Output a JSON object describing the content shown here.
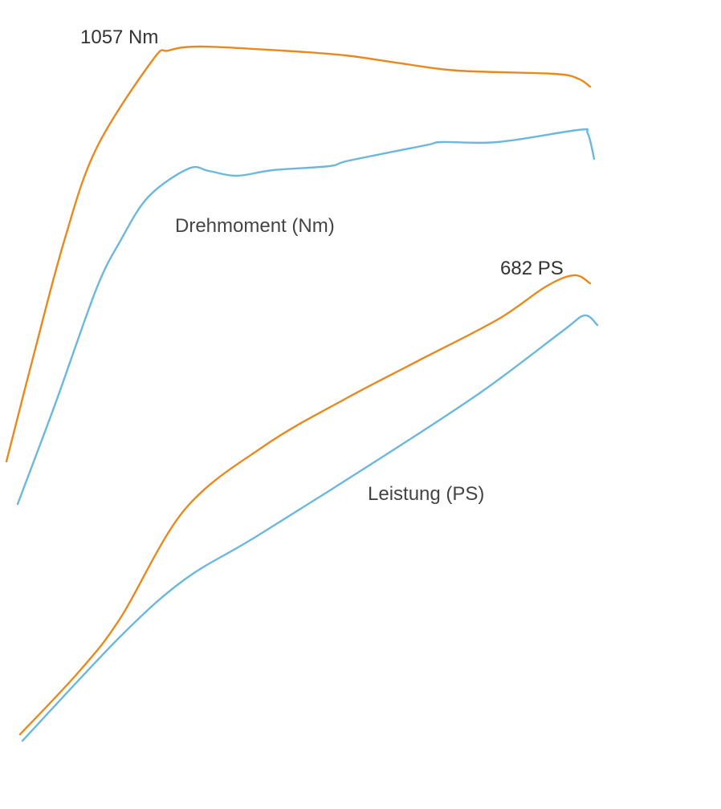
{
  "chart_data": {
    "type": "line",
    "colors": {
      "tuned": "#E8891E",
      "stock": "#6CB7DC"
    },
    "groups": [
      {
        "key": "torque",
        "label": "Drehmoment (Nm)",
        "peak_label": "1057 Nm",
        "series": [
          {
            "role": "tuned",
            "points": [
              [
                8,
                575
              ],
              [
                40,
                450
              ],
              [
                80,
                300
              ],
              [
                120,
                185
              ],
              [
                190,
                75
              ],
              [
                210,
                63
              ],
              [
                250,
                58
              ],
              [
                350,
                63
              ],
              [
                430,
                69
              ],
              [
                500,
                79
              ],
              [
                570,
                88
              ],
              [
                690,
                92
              ],
              [
                720,
                98
              ],
              [
                735,
                108
              ]
            ]
          },
          {
            "role": "stock",
            "points": [
              [
                22,
                628
              ],
              [
                70,
                500
              ],
              [
                120,
                360
              ],
              [
                150,
                300
              ],
              [
                185,
                245
              ],
              [
                235,
                210
              ],
              [
                260,
                213
              ],
              [
                295,
                219
              ],
              [
                340,
                212
              ],
              [
                410,
                207
              ],
              [
                435,
                200
              ],
              [
                530,
                181
              ],
              [
                550,
                177
              ],
              [
                620,
                177
              ],
              [
                720,
                162
              ],
              [
                732,
                166
              ],
              [
                740,
                198
              ]
            ]
          }
        ]
      },
      {
        "key": "power",
        "label": "Leistung (PS)",
        "peak_label": "682 PS",
        "series": [
          {
            "role": "tuned",
            "points": [
              [
                25,
                915
              ],
              [
                100,
                835
              ],
              [
                150,
                770
              ],
              [
                230,
                635
              ],
              [
                330,
                555
              ],
              [
                430,
                497
              ],
              [
                520,
                450
              ],
              [
                620,
                398
              ],
              [
                680,
                357
              ],
              [
                715,
                343
              ],
              [
                735,
                353
              ]
            ]
          },
          {
            "role": "stock",
            "points": [
              [
                28,
                923
              ],
              [
                150,
                793
              ],
              [
                230,
                722
              ],
              [
                320,
                668
              ],
              [
                480,
                567
              ],
              [
                600,
                488
              ],
              [
                700,
                413
              ],
              [
                728,
                393
              ],
              [
                744,
                405
              ]
            ]
          }
        ]
      }
    ]
  }
}
